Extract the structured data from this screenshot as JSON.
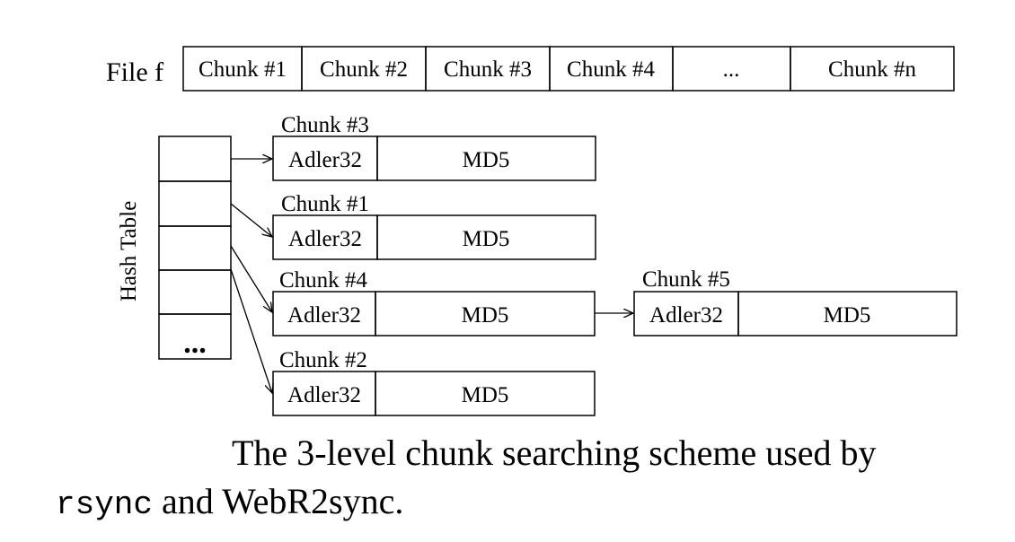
{
  "file": {
    "label": "File f",
    "chunks": [
      "Chunk #1",
      "Chunk #2",
      "Chunk #3",
      "Chunk #4",
      "...",
      "Chunk #n"
    ]
  },
  "hash_table": {
    "label": "Hash Table",
    "ellipsis": "..."
  },
  "entries": [
    {
      "chunk": "Chunk #3",
      "weak": "Adler32",
      "strong": "MD5"
    },
    {
      "chunk": "Chunk #1",
      "weak": "Adler32",
      "strong": "MD5"
    },
    {
      "chunk": "Chunk #4",
      "weak": "Adler32",
      "strong": "MD5"
    },
    {
      "chunk": "Chunk #2",
      "weak": "Adler32",
      "strong": "MD5"
    }
  ],
  "chained_entry": {
    "chunk": "Chunk #5",
    "weak": "Adler32",
    "strong": "MD5"
  },
  "caption": {
    "line1": "The 3-level chunk searching scheme used by",
    "mono": "rsync",
    "rest": " and WebR2sync."
  }
}
